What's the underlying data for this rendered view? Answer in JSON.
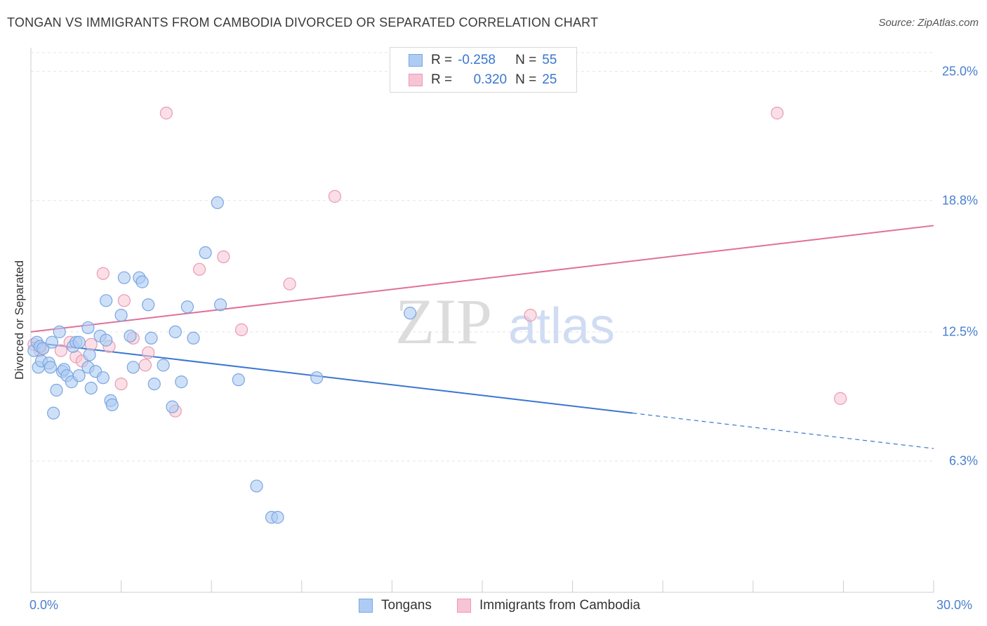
{
  "title": "TONGAN VS IMMIGRANTS FROM CAMBODIA DIVORCED OR SEPARATED CORRELATION CHART",
  "source": "Source: ZipAtlas.com",
  "watermark": {
    "zip": "ZIP",
    "atlas": "atlas"
  },
  "legend": {
    "row1": {
      "r_label": "R =",
      "r_value": "-0.258",
      "n_label": "N =",
      "n_value": "55"
    },
    "row2": {
      "r_label": "R =",
      "r_value": "0.320",
      "n_label": "N =",
      "n_value": "25"
    }
  },
  "colors": {
    "tongans_fill": "#aeccf3",
    "tongans_stroke": "#7aa6e0",
    "tongans_line": "#3a76d0",
    "cambodia_fill": "#f7c4d4",
    "cambodia_stroke": "#e99ab3",
    "cambodia_line": "#e0709a",
    "tick_label": "#4a7fd0",
    "grid": "#e4e4e4"
  },
  "chart_data": {
    "type": "scatter",
    "title": "TONGAN VS IMMIGRANTS FROM CAMBODIA DIVORCED OR SEPARATED CORRELATION CHART",
    "xlabel": "",
    "ylabel": "Divorced or Separated",
    "xlim": [
      0,
      30
    ],
    "ylim": [
      0,
      25.9
    ],
    "x_tick_labels": [
      "0.0%",
      "30.0%"
    ],
    "y_ticks": [
      6.3,
      12.5,
      18.8,
      25.0
    ],
    "y_tick_labels": [
      "6.3%",
      "12.5%",
      "18.8%",
      "25.0%"
    ],
    "grid": true,
    "legend_position": "top-center",
    "series": [
      {
        "name": "Tongans",
        "r": -0.258,
        "n": 55,
        "trend": {
          "x0": 0,
          "y0": 12.0,
          "x1": 20.0,
          "y1": 8.6,
          "dashed_to_x": 30.0,
          "dashed_to_y": 6.9
        },
        "points": [
          [
            0.1,
            11.6
          ],
          [
            0.2,
            12.0
          ],
          [
            0.25,
            10.8
          ],
          [
            0.3,
            11.8
          ],
          [
            0.35,
            11.1
          ],
          [
            0.4,
            11.7
          ],
          [
            0.6,
            11.0
          ],
          [
            0.65,
            10.8
          ],
          [
            0.7,
            12.0
          ],
          [
            0.75,
            8.6
          ],
          [
            0.85,
            9.7
          ],
          [
            0.95,
            12.5
          ],
          [
            1.05,
            10.6
          ],
          [
            1.1,
            10.7
          ],
          [
            1.2,
            10.4
          ],
          [
            1.35,
            10.1
          ],
          [
            1.4,
            11.8
          ],
          [
            1.5,
            12.0
          ],
          [
            1.6,
            12.0
          ],
          [
            1.6,
            10.4
          ],
          [
            1.9,
            10.8
          ],
          [
            1.95,
            11.4
          ],
          [
            1.9,
            12.7
          ],
          [
            2.0,
            9.8
          ],
          [
            2.15,
            10.6
          ],
          [
            2.3,
            12.3
          ],
          [
            2.4,
            10.3
          ],
          [
            2.5,
            12.1
          ],
          [
            2.5,
            14.0
          ],
          [
            2.65,
            9.2
          ],
          [
            2.7,
            9.0
          ],
          [
            3.0,
            13.3
          ],
          [
            3.1,
            15.1
          ],
          [
            3.3,
            12.3
          ],
          [
            3.4,
            10.8
          ],
          [
            3.6,
            15.1
          ],
          [
            3.7,
            14.9
          ],
          [
            3.9,
            13.8
          ],
          [
            4.0,
            12.2
          ],
          [
            4.1,
            10.0
          ],
          [
            4.4,
            10.9
          ],
          [
            4.7,
            8.9
          ],
          [
            4.8,
            12.5
          ],
          [
            5.0,
            10.1
          ],
          [
            5.2,
            13.7
          ],
          [
            5.4,
            12.2
          ],
          [
            5.8,
            16.3
          ],
          [
            6.2,
            18.7
          ],
          [
            6.3,
            13.8
          ],
          [
            6.9,
            10.2
          ],
          [
            7.5,
            5.1
          ],
          [
            8.0,
            3.6
          ],
          [
            8.2,
            3.6
          ],
          [
            9.5,
            10.3
          ],
          [
            12.6,
            13.4
          ]
        ]
      },
      {
        "name": "Immigrants from Cambodia",
        "r": 0.32,
        "n": 25,
        "trend": {
          "x0": 0,
          "y0": 12.5,
          "x1": 30.0,
          "y1": 17.6
        },
        "points": [
          [
            0.1,
            11.9
          ],
          [
            0.3,
            11.6
          ],
          [
            0.4,
            11.7
          ],
          [
            1.0,
            11.6
          ],
          [
            1.3,
            12.0
          ],
          [
            1.5,
            11.3
          ],
          [
            1.7,
            11.1
          ],
          [
            2.0,
            11.9
          ],
          [
            2.4,
            15.3
          ],
          [
            2.6,
            11.8
          ],
          [
            3.0,
            10.0
          ],
          [
            3.1,
            14.0
          ],
          [
            3.4,
            12.2
          ],
          [
            3.8,
            10.9
          ],
          [
            3.9,
            11.5
          ],
          [
            4.5,
            23.0
          ],
          [
            4.8,
            8.7
          ],
          [
            5.6,
            15.5
          ],
          [
            6.4,
            16.1
          ],
          [
            7.0,
            12.6
          ],
          [
            8.6,
            14.8
          ],
          [
            10.1,
            19.0
          ],
          [
            16.6,
            13.3
          ],
          [
            24.8,
            23.0
          ],
          [
            26.9,
            9.3
          ]
        ]
      }
    ]
  }
}
